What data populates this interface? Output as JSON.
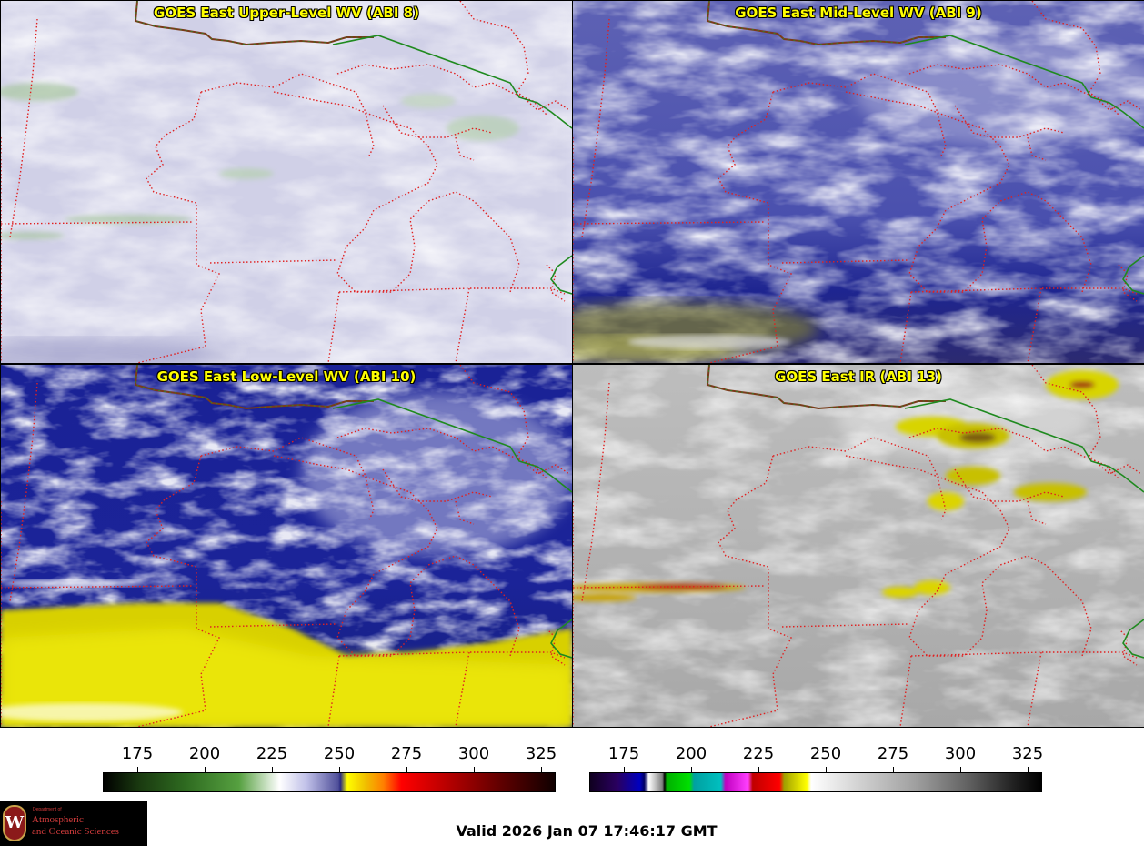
{
  "panels": [
    {
      "title": "GOES East Upper-Level WV (ABI 8)"
    },
    {
      "title": "GOES East Mid-Level WV (ABI 9)"
    },
    {
      "title": "GOES East Low-Level WV (ABI 10)"
    },
    {
      "title": "GOES East IR (ABI 13)"
    }
  ],
  "colorbars": [
    {
      "name": "water-vapor",
      "ticks": [
        "175",
        "200",
        "225",
        "250",
        "275",
        "300",
        "325"
      ]
    },
    {
      "name": "infrared",
      "ticks": [
        "175",
        "200",
        "225",
        "250",
        "275",
        "300",
        "325"
      ]
    }
  ],
  "logo": {
    "line1": "Department of",
    "line2": "Atmospheric",
    "line3": "and Oceanic Sciences",
    "seal_letter": "W"
  },
  "valid_time": "Valid 2026 Jan 07 17:46:17 GMT",
  "colors": {
    "state_border": "#e02020",
    "national_border": "#1f8a1f",
    "coast": "#7a3a1a"
  }
}
